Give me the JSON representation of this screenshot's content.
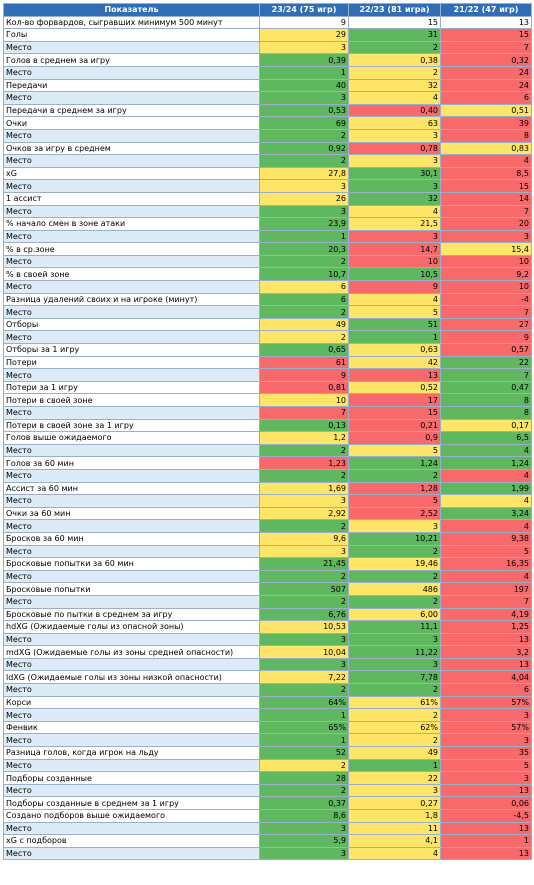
{
  "table": {
    "header": [
      "Показатель",
      "23/24 (75 игр)",
      "22/23 (81 игра)",
      "21/22 (47 игр)"
    ],
    "rows": [
      {
        "label": "Кол-во форвардов, сыгравших минимум 500 минут",
        "fill": "#ffffff",
        "cells": [
          "9",
          "15",
          "13"
        ],
        "fills": [
          "#ffffff",
          "#ffffff",
          "#ffffff"
        ]
      },
      {
        "label": "Голы",
        "fill": "#ffffff",
        "cells": [
          "29",
          "31",
          "15"
        ],
        "fills": [
          "#ffe567",
          "#5fb760",
          "#f8696b"
        ]
      },
      {
        "label": "Место",
        "fill": "#ddebf7",
        "cells": [
          "3",
          "2",
          "7"
        ],
        "fills": [
          "#ffe567",
          "#5fb760",
          "#f8696b"
        ]
      },
      {
        "label": "Голов в среднем за игру",
        "fill": "#ffffff",
        "cells": [
          "0,39",
          "0,38",
          "0,32"
        ],
        "fills": [
          "#5fb760",
          "#ffe567",
          "#f8696b"
        ]
      },
      {
        "label": "Место",
        "fill": "#ddebf7",
        "cells": [
          "1",
          "2",
          "24"
        ],
        "fills": [
          "#5fb760",
          "#ffe567",
          "#f8696b"
        ]
      },
      {
        "label": "Передачи",
        "fill": "#ffffff",
        "cells": [
          "40",
          "32",
          "24"
        ],
        "fills": [
          "#5fb760",
          "#ffe567",
          "#f8696b"
        ]
      },
      {
        "label": "Место",
        "fill": "#ddebf7",
        "cells": [
          "3",
          "4",
          "6"
        ],
        "fills": [
          "#5fb760",
          "#ffe567",
          "#f8696b"
        ]
      },
      {
        "label": "Передачи в среднем за игру",
        "fill": "#ffffff",
        "cells": [
          "0,53",
          "0,40",
          "0,51"
        ],
        "fills": [
          "#5fb760",
          "#f8696b",
          "#ffe567"
        ]
      },
      {
        "label": "Очки",
        "fill": "#ffffff",
        "cells": [
          "69",
          "63",
          "39"
        ],
        "fills": [
          "#5fb760",
          "#ffe567",
          "#f8696b"
        ]
      },
      {
        "label": "Место",
        "fill": "#ddebf7",
        "cells": [
          "2",
          "3",
          "8"
        ],
        "fills": [
          "#5fb760",
          "#ffe567",
          "#f8696b"
        ]
      },
      {
        "label": "Очков за игру в среднем",
        "fill": "#ffffff",
        "cells": [
          "0,92",
          "0,78",
          "0,83"
        ],
        "fills": [
          "#5fb760",
          "#f8696b",
          "#ffe567"
        ]
      },
      {
        "label": "Место",
        "fill": "#ddebf7",
        "cells": [
          "2",
          "3",
          "4"
        ],
        "fills": [
          "#5fb760",
          "#ffe567",
          "#f8696b"
        ]
      },
      {
        "label": "xG",
        "fill": "#ffffff",
        "cells": [
          "27,8",
          "30,1",
          "8,5"
        ],
        "fills": [
          "#ffe567",
          "#5fb760",
          "#f8696b"
        ]
      },
      {
        "label": "Место",
        "fill": "#ddebf7",
        "cells": [
          "3",
          "3",
          "15"
        ],
        "fills": [
          "#ffe567",
          "#5fb760",
          "#f8696b"
        ]
      },
      {
        "label": "1 ассист",
        "fill": "#ffffff",
        "cells": [
          "26",
          "32",
          "14"
        ],
        "fills": [
          "#ffe567",
          "#5fb760",
          "#f8696b"
        ]
      },
      {
        "label": "Место",
        "fill": "#ddebf7",
        "cells": [
          "3",
          "4",
          "7"
        ],
        "fills": [
          "#5fb760",
          "#ffe567",
          "#f8696b"
        ]
      },
      {
        "label": "% начало смен в зоне атаки",
        "fill": "#ffffff",
        "cells": [
          "23,9",
          "21,5",
          "20"
        ],
        "fills": [
          "#5fb760",
          "#ffe567",
          "#f8696b"
        ]
      },
      {
        "label": "Место",
        "fill": "#ddebf7",
        "cells": [
          "1",
          "3",
          "3"
        ],
        "fills": [
          "#5fb760",
          "#f8696b",
          "#f8696b"
        ]
      },
      {
        "label": "% в ср.зоне",
        "fill": "#ffffff",
        "cells": [
          "20,3",
          "14,7",
          "15,4"
        ],
        "fills": [
          "#5fb760",
          "#f8696b",
          "#ffe567"
        ]
      },
      {
        "label": "Место",
        "fill": "#ddebf7",
        "cells": [
          "2",
          "10",
          "10"
        ],
        "fills": [
          "#5fb760",
          "#f8696b",
          "#f8696b"
        ]
      },
      {
        "label": "% в своей зоне",
        "fill": "#ffffff",
        "cells": [
          "10,7",
          "10,5",
          "9,2"
        ],
        "fills": [
          "#5fb760",
          "#5fb760",
          "#f8696b"
        ]
      },
      {
        "label": "Место",
        "fill": "#ddebf7",
        "cells": [
          "6",
          "9",
          "10"
        ],
        "fills": [
          "#ffe567",
          "#f8696b",
          "#f8696b"
        ]
      },
      {
        "label": "Разница удалений своих и на игроке (минут)",
        "fill": "#ffffff",
        "cells": [
          "6",
          "4",
          "-4"
        ],
        "fills": [
          "#5fb760",
          "#ffe567",
          "#f8696b"
        ]
      },
      {
        "label": "Место",
        "fill": "#ddebf7",
        "cells": [
          "2",
          "5",
          "7"
        ],
        "fills": [
          "#5fb760",
          "#ffe567",
          "#f8696b"
        ]
      },
      {
        "label": "Отборы",
        "fill": "#ffffff",
        "cells": [
          "49",
          "51",
          "27"
        ],
        "fills": [
          "#ffe567",
          "#5fb760",
          "#f8696b"
        ]
      },
      {
        "label": "Место",
        "fill": "#ddebf7",
        "cells": [
          "2",
          "1",
          "9"
        ],
        "fills": [
          "#ffe567",
          "#5fb760",
          "#f8696b"
        ]
      },
      {
        "label": "Отборы за 1 игру",
        "fill": "#ffffff",
        "cells": [
          "0,65",
          "0,63",
          "0,57"
        ],
        "fills": [
          "#5fb760",
          "#ffe567",
          "#f8696b"
        ]
      },
      {
        "label": "Потери",
        "fill": "#ffffff",
        "cells": [
          "61",
          "42",
          "22"
        ],
        "fills": [
          "#f8696b",
          "#ffe567",
          "#5fb760"
        ]
      },
      {
        "label": "Место",
        "fill": "#ddebf7",
        "cells": [
          "9",
          "13",
          "7"
        ],
        "fills": [
          "#f8696b",
          "#f8696b",
          "#5fb760"
        ]
      },
      {
        "label": "Потери за 1 игру",
        "fill": "#ffffff",
        "cells": [
          "0,81",
          "0,52",
          "0,47"
        ],
        "fills": [
          "#f8696b",
          "#ffe567",
          "#5fb760"
        ]
      },
      {
        "label": "Потери в своей зоне",
        "fill": "#ffffff",
        "cells": [
          "10",
          "17",
          "8"
        ],
        "fills": [
          "#ffe567",
          "#f8696b",
          "#5fb760"
        ]
      },
      {
        "label": "Место",
        "fill": "#ddebf7",
        "cells": [
          "7",
          "15",
          "8"
        ],
        "fills": [
          "#f8696b",
          "#f8696b",
          "#5fb760"
        ]
      },
      {
        "label": "Потери в своей зоне за 1 игру",
        "fill": "#ffffff",
        "cells": [
          "0,13",
          "0,21",
          "0,17"
        ],
        "fills": [
          "#5fb760",
          "#f8696b",
          "#ffe567"
        ]
      },
      {
        "label": "Голов выше ожидаемого",
        "fill": "#ffffff",
        "cells": [
          "1,2",
          "0,9",
          "6,5"
        ],
        "fills": [
          "#ffe567",
          "#f8696b",
          "#5fb760"
        ]
      },
      {
        "label": "Место",
        "fill": "#ddebf7",
        "cells": [
          "2",
          "5",
          "4"
        ],
        "fills": [
          "#5fb760",
          "#ffe567",
          "#5fb760"
        ]
      },
      {
        "label": "Голов за 60 мин",
        "fill": "#ffffff",
        "cells": [
          "1,23",
          "1,24",
          "1,24"
        ],
        "fills": [
          "#f8696b",
          "#5fb760",
          "#5fb760"
        ]
      },
      {
        "label": "Место",
        "fill": "#ddebf7",
        "cells": [
          "2",
          "2",
          "4"
        ],
        "fills": [
          "#5fb760",
          "#5fb760",
          "#f8696b"
        ]
      },
      {
        "label": "Ассист за 60 мин",
        "fill": "#ffffff",
        "cells": [
          "1,69",
          "1,28",
          "1,99"
        ],
        "fills": [
          "#ffe567",
          "#f8696b",
          "#5fb760"
        ]
      },
      {
        "label": "Место",
        "fill": "#ddebf7",
        "cells": [
          "3",
          "5",
          "4"
        ],
        "fills": [
          "#ffe567",
          "#f8696b",
          "#ffe567"
        ]
      },
      {
        "label": "Очки за 60 мин",
        "fill": "#ffffff",
        "cells": [
          "2,92",
          "2,52",
          "3,24"
        ],
        "fills": [
          "#ffe567",
          "#f8696b",
          "#5fb760"
        ]
      },
      {
        "label": "Место",
        "fill": "#ddebf7",
        "cells": [
          "2",
          "3",
          "4"
        ],
        "fills": [
          "#5fb760",
          "#ffe567",
          "#f8696b"
        ]
      },
      {
        "label": "Бросков за 60 мин",
        "fill": "#ffffff",
        "cells": [
          "9,6",
          "10,21",
          "9,38"
        ],
        "fills": [
          "#ffe567",
          "#5fb760",
          "#f8696b"
        ]
      },
      {
        "label": "Место",
        "fill": "#ddebf7",
        "cells": [
          "3",
          "2",
          "5"
        ],
        "fills": [
          "#ffe567",
          "#5fb760",
          "#f8696b"
        ]
      },
      {
        "label": "Бросковые попытки за 60 мин",
        "fill": "#ffffff",
        "cells": [
          "21,45",
          "19,46",
          "16,35"
        ],
        "fills": [
          "#5fb760",
          "#ffe567",
          "#f8696b"
        ]
      },
      {
        "label": "Место",
        "fill": "#ddebf7",
        "cells": [
          "2",
          "2",
          "4"
        ],
        "fills": [
          "#5fb760",
          "#5fb760",
          "#f8696b"
        ]
      },
      {
        "label": "Бросковые попытки",
        "fill": "#ffffff",
        "cells": [
          "507",
          "486",
          "197"
        ],
        "fills": [
          "#5fb760",
          "#ffe567",
          "#f8696b"
        ]
      },
      {
        "label": "Место",
        "fill": "#ddebf7",
        "cells": [
          "2",
          "2",
          "7"
        ],
        "fills": [
          "#5fb760",
          "#5fb760",
          "#f8696b"
        ]
      },
      {
        "label": "Бросковые по пытки в среднем за игру",
        "fill": "#ffffff",
        "cells": [
          "6,76",
          "6,00",
          "4,19"
        ],
        "fills": [
          "#5fb760",
          "#ffe567",
          "#f8696b"
        ]
      },
      {
        "label": "hdXG (Ожидаемые голы из опасной зоны)",
        "fill": "#ffffff",
        "cells": [
          "10,53",
          "11,1",
          "1,25"
        ],
        "fills": [
          "#ffe567",
          "#5fb760",
          "#f8696b"
        ]
      },
      {
        "label": "Место",
        "fill": "#ddebf7",
        "cells": [
          "3",
          "3",
          "13"
        ],
        "fills": [
          "#5fb760",
          "#5fb760",
          "#f8696b"
        ]
      },
      {
        "label": "mdXG (Ожидаемые голы из зоны средней опасности)",
        "fill": "#ffffff",
        "cells": [
          "10,04",
          "11,22",
          "3,2"
        ],
        "fills": [
          "#ffe567",
          "#5fb760",
          "#f8696b"
        ]
      },
      {
        "label": "Место",
        "fill": "#ddebf7",
        "cells": [
          "3",
          "3",
          "13"
        ],
        "fills": [
          "#5fb760",
          "#5fb760",
          "#f8696b"
        ]
      },
      {
        "label": "ldXG (Ожидаемые голы из зоны низкой опасности)",
        "fill": "#ffffff",
        "cells": [
          "7,22",
          "7,78",
          "4,04"
        ],
        "fills": [
          "#ffe567",
          "#5fb760",
          "#f8696b"
        ]
      },
      {
        "label": "Место",
        "fill": "#ddebf7",
        "cells": [
          "2",
          "2",
          "6"
        ],
        "fills": [
          "#5fb760",
          "#5fb760",
          "#f8696b"
        ]
      },
      {
        "label": "Корси",
        "fill": "#ffffff",
        "cells": [
          "64%",
          "61%",
          "57%"
        ],
        "fills": [
          "#5fb760",
          "#ffe567",
          "#f8696b"
        ]
      },
      {
        "label": "Место",
        "fill": "#ddebf7",
        "cells": [
          "1",
          "2",
          "3"
        ],
        "fills": [
          "#5fb760",
          "#ffe567",
          "#f8696b"
        ]
      },
      {
        "label": "Фенвик",
        "fill": "#ffffff",
        "cells": [
          "65%",
          "62%",
          "57%"
        ],
        "fills": [
          "#5fb760",
          "#ffe567",
          "#f8696b"
        ]
      },
      {
        "label": "Место",
        "fill": "#ddebf7",
        "cells": [
          "1",
          "2",
          "3"
        ],
        "fills": [
          "#5fb760",
          "#ffe567",
          "#f8696b"
        ]
      },
      {
        "label": "Разница голов, когда игрок на льду",
        "fill": "#ffffff",
        "cells": [
          "52",
          "49",
          "35"
        ],
        "fills": [
          "#5fb760",
          "#ffe567",
          "#f8696b"
        ]
      },
      {
        "label": "Место",
        "fill": "#ddebf7",
        "cells": [
          "2",
          "1",
          "5"
        ],
        "fills": [
          "#ffe567",
          "#5fb760",
          "#f8696b"
        ]
      },
      {
        "label": "Подборы созданные",
        "fill": "#ffffff",
        "cells": [
          "28",
          "22",
          "3"
        ],
        "fills": [
          "#5fb760",
          "#ffe567",
          "#f8696b"
        ]
      },
      {
        "label": "Место",
        "fill": "#ddebf7",
        "cells": [
          "2",
          "3",
          "13"
        ],
        "fills": [
          "#5fb760",
          "#ffe567",
          "#f8696b"
        ]
      },
      {
        "label": "Подборы созданные в среднем за 1 игру",
        "fill": "#ffffff",
        "cells": [
          "0,37",
          "0,27",
          "0,06"
        ],
        "fills": [
          "#5fb760",
          "#ffe567",
          "#f8696b"
        ]
      },
      {
        "label": "Создано подборов выше ожидаемого",
        "fill": "#ffffff",
        "cells": [
          "8,6",
          "1,8",
          "-4,5"
        ],
        "fills": [
          "#5fb760",
          "#ffe567",
          "#f8696b"
        ]
      },
      {
        "label": "Место",
        "fill": "#ddebf7",
        "cells": [
          "3",
          "11",
          "13"
        ],
        "fills": [
          "#5fb760",
          "#ffe567",
          "#f8696b"
        ]
      },
      {
        "label": "xG с подборов",
        "fill": "#ffffff",
        "cells": [
          "5,9",
          "4,1",
          "1"
        ],
        "fills": [
          "#5fb760",
          "#ffe567",
          "#f8696b"
        ]
      },
      {
        "label": "Место",
        "fill": "#ddebf7",
        "cells": [
          "3",
          "4",
          "13"
        ],
        "fills": [
          "#5fb760",
          "#ffe567",
          "#f8696b"
        ]
      }
    ]
  }
}
